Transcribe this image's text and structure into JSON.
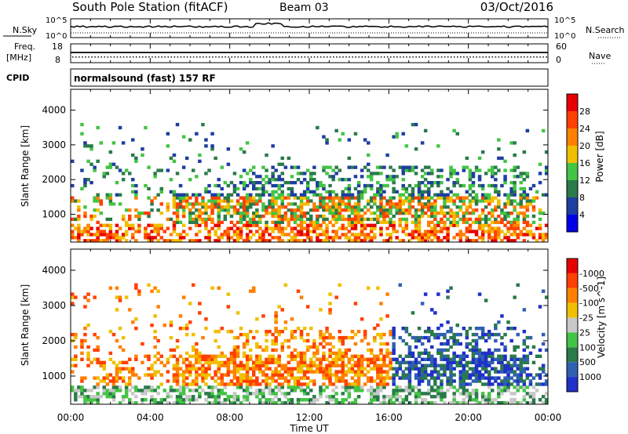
{
  "header": {
    "station": "South Pole Station (fitACF)",
    "beam": "Beam 03",
    "date": "03/Oct/2016"
  },
  "strip_nsky": {
    "left_label": "N.Sky",
    "left_ticks": [
      "10^5",
      "10^0"
    ],
    "right_label": "N.Search",
    "right_ticks": [
      "10^5",
      "10^0"
    ]
  },
  "strip_freq": {
    "left_label_1": "Freq.",
    "left_label_2": "[MHz]",
    "left_ticks": [
      "18",
      "8"
    ],
    "right_label": "Nave",
    "right_ticks": [
      "60",
      "0"
    ]
  },
  "cpid": {
    "label": "CPID",
    "value": "normalsound (fast) 157 RF"
  },
  "x_axis": {
    "label": "Time UT",
    "ticks": [
      "00:00",
      "04:00",
      "08:00",
      "12:00",
      "16:00",
      "20:00",
      "00:00"
    ]
  },
  "chart_data": [
    {
      "type": "heatmap",
      "ylabel": "Slant Range [km]",
      "y_ticks": [
        "1000",
        "2000",
        "3000",
        "4000"
      ],
      "ylim": [
        200,
        4600
      ],
      "xlim": [
        "00:00",
        "24:00"
      ],
      "colorbar": {
        "label": "Power [dB]",
        "tick_labels": [
          "4",
          "8",
          "12",
          "16",
          "20",
          "24",
          "28"
        ],
        "colors": [
          "#0000e8",
          "#1e3ea0",
          "#2a7a4a",
          "#44c444",
          "#f0c000",
          "#ff8000",
          "#ff4000",
          "#e80000"
        ]
      }
    },
    {
      "type": "heatmap",
      "ylabel": "Slant Range [km]",
      "y_ticks": [
        "1000",
        "2000",
        "3000",
        "4000"
      ],
      "ylim": [
        200,
        4600
      ],
      "xlim": [
        "00:00",
        "24:00"
      ],
      "colorbar": {
        "label": "Velocity [m s^-1]",
        "tick_labels": [
          "1000",
          "500",
          "100",
          "25",
          "-25",
          "-100",
          "-500",
          "-1000"
        ],
        "colors": [
          "#2030c8",
          "#3060b0",
          "#2a7a4a",
          "#44c444",
          "#c8c8c8",
          "#f0c000",
          "#ff8000",
          "#ff4000",
          "#e80000"
        ]
      }
    }
  ]
}
